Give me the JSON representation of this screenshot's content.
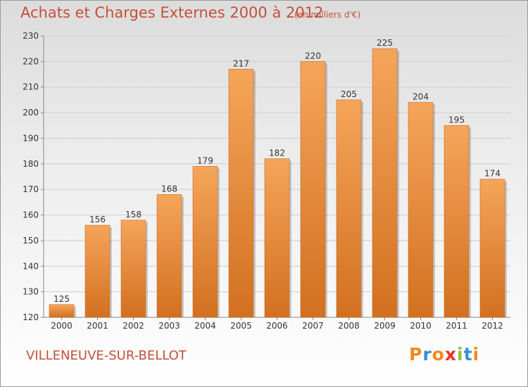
{
  "chart_data": {
    "type": "bar",
    "title": "Achats et Charges Externes 2000 à 2012",
    "unit_note": "(en milliers d'€)",
    "categories": [
      "2000",
      "2001",
      "2002",
      "2003",
      "2004",
      "2005",
      "2006",
      "2007",
      "2008",
      "2009",
      "2010",
      "2011",
      "2012"
    ],
    "values": [
      125,
      156,
      158,
      168,
      179,
      217,
      182,
      220,
      205,
      225,
      204,
      195,
      174
    ],
    "ylim": [
      120,
      230
    ],
    "yticks": [
      120,
      130,
      140,
      150,
      160,
      170,
      180,
      190,
      200,
      210,
      220,
      230
    ],
    "xlabel": "",
    "ylabel": "",
    "grid": true,
    "bar_color_top": "#f5a55a",
    "bar_color_bottom": "#d27020"
  },
  "footer": {
    "commune": "VILLENEUVE-SUR-BELLOT",
    "logo_letters": [
      "P",
      "r",
      "o",
      "x",
      "i",
      "t",
      "i"
    ],
    "logo_colors": [
      "#f28a1c",
      "#3a8fd0",
      "#f28a1c",
      "#e8322a",
      "#8cc43c",
      "#3a8fd0",
      "#f28a1c"
    ]
  },
  "colors": {
    "title": "#c4503a",
    "axis_text": "#333333",
    "grid": "#cfcfcf"
  }
}
